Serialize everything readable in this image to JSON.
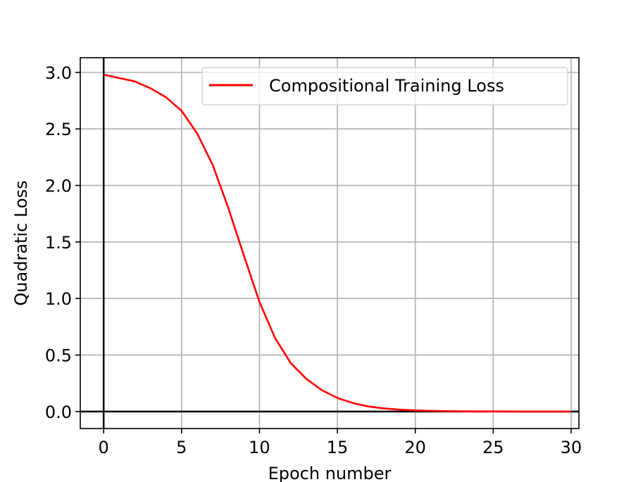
{
  "chart_data": {
    "type": "line",
    "title": "",
    "xlabel": "Epoch number",
    "ylabel": "Quadratic Loss",
    "xlim": [
      -1.5,
      30.5
    ],
    "ylim": [
      -0.15,
      3.13
    ],
    "xticks": [
      0,
      5,
      10,
      15,
      20,
      25,
      30
    ],
    "xtick_labels": [
      "0",
      "5",
      "10",
      "15",
      "20",
      "25",
      "30"
    ],
    "yticks": [
      0.0,
      0.5,
      1.0,
      1.5,
      2.0,
      2.5,
      3.0
    ],
    "ytick_labels": [
      "0.0",
      "0.5",
      "1.0",
      "1.5",
      "2.0",
      "2.5",
      "3.0"
    ],
    "grid": true,
    "legend_position": "top-right",
    "zero_lines": true,
    "series": [
      {
        "name": "Compositional Training Loss",
        "color": "#ff0000",
        "x": [
          0,
          1,
          2,
          3,
          4,
          5,
          6,
          7,
          8,
          9,
          10,
          11,
          12,
          13,
          14,
          15,
          16,
          17,
          18,
          19,
          20,
          21,
          22,
          23,
          24,
          25,
          26,
          27,
          28,
          29,
          30
        ],
        "y": [
          2.98,
          2.95,
          2.92,
          2.86,
          2.78,
          2.66,
          2.46,
          2.18,
          1.8,
          1.38,
          0.97,
          0.65,
          0.43,
          0.29,
          0.19,
          0.12,
          0.075,
          0.045,
          0.028,
          0.017,
          0.01,
          0.006,
          0.004,
          0.002,
          0.001,
          0.001,
          0.0005,
          0.0003,
          0.0002,
          0.0001,
          0.0001
        ]
      }
    ]
  }
}
